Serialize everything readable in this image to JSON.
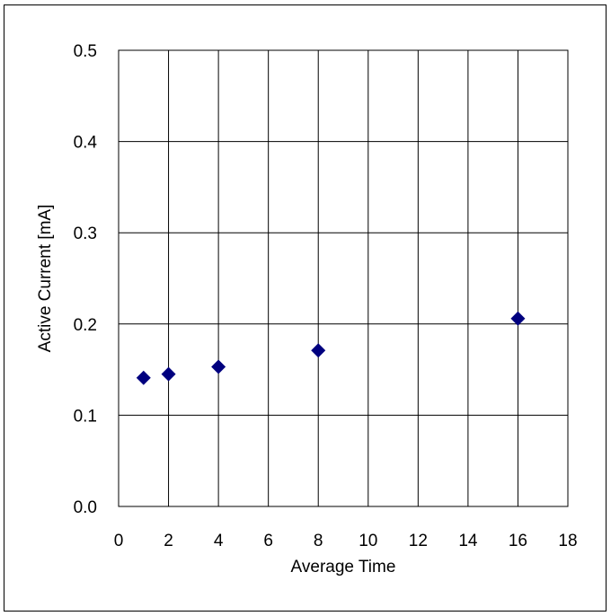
{
  "chart_data": {
    "type": "scatter",
    "title": "",
    "xlabel": "Average Time",
    "ylabel": "Active Current [mA]",
    "xlim": [
      0,
      18
    ],
    "ylim": [
      0.0,
      0.5
    ],
    "x_ticks": [
      "0",
      "2",
      "4",
      "6",
      "8",
      "10",
      "12",
      "14",
      "16",
      "18"
    ],
    "y_ticks": [
      "0.0",
      "0.1",
      "0.2",
      "0.3",
      "0.4",
      "0.5"
    ],
    "grid": true,
    "legend": "none",
    "marker": "diamond",
    "marker_color": "#00007f",
    "series": [
      {
        "points": [
          {
            "x": 1,
            "y": 0.141
          },
          {
            "x": 2,
            "y": 0.145
          },
          {
            "x": 4,
            "y": 0.153
          },
          {
            "x": 8,
            "y": 0.171
          },
          {
            "x": 16,
            "y": 0.206
          }
        ]
      }
    ]
  }
}
